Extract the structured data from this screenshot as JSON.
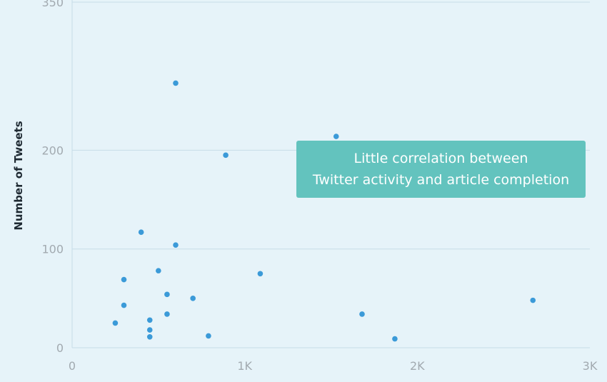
{
  "chart_data": {
    "type": "scatter",
    "title": "",
    "xlabel": "",
    "ylabel": "Number of Tweets",
    "xlim": [
      0,
      3000
    ],
    "ylim": [
      0,
      350
    ],
    "x_ticks": [
      {
        "value": 0,
        "label": "0"
      },
      {
        "value": 1000,
        "label": "1K"
      },
      {
        "value": 2000,
        "label": "2K"
      },
      {
        "value": 3000,
        "label": "3K"
      }
    ],
    "y_ticks": [
      {
        "value": 0,
        "label": "0"
      },
      {
        "value": 100,
        "label": "100"
      },
      {
        "value": 200,
        "label": "200"
      },
      {
        "value": 350,
        "label": "350"
      }
    ],
    "grid": true,
    "points": [
      {
        "x": 600,
        "y": 268
      },
      {
        "x": 1530,
        "y": 214
      },
      {
        "x": 890,
        "y": 195
      },
      {
        "x": 400,
        "y": 117
      },
      {
        "x": 600,
        "y": 104
      },
      {
        "x": 500,
        "y": 78
      },
      {
        "x": 1090,
        "y": 75
      },
      {
        "x": 300,
        "y": 69
      },
      {
        "x": 550,
        "y": 54
      },
      {
        "x": 700,
        "y": 50
      },
      {
        "x": 2670,
        "y": 48
      },
      {
        "x": 300,
        "y": 43
      },
      {
        "x": 1680,
        "y": 34
      },
      {
        "x": 550,
        "y": 34
      },
      {
        "x": 450,
        "y": 28
      },
      {
        "x": 250,
        "y": 25
      },
      {
        "x": 450,
        "y": 18
      },
      {
        "x": 790,
        "y": 12
      },
      {
        "x": 450,
        "y": 11
      },
      {
        "x": 1870,
        "y": 9
      }
    ],
    "colors": {
      "point": "#3b9ad8",
      "annotation_bg": "#63c3be",
      "grid": "#c7dde8"
    },
    "annotation": {
      "line1": "Little correlation between",
      "line2": "Twitter activity and article completion"
    }
  }
}
